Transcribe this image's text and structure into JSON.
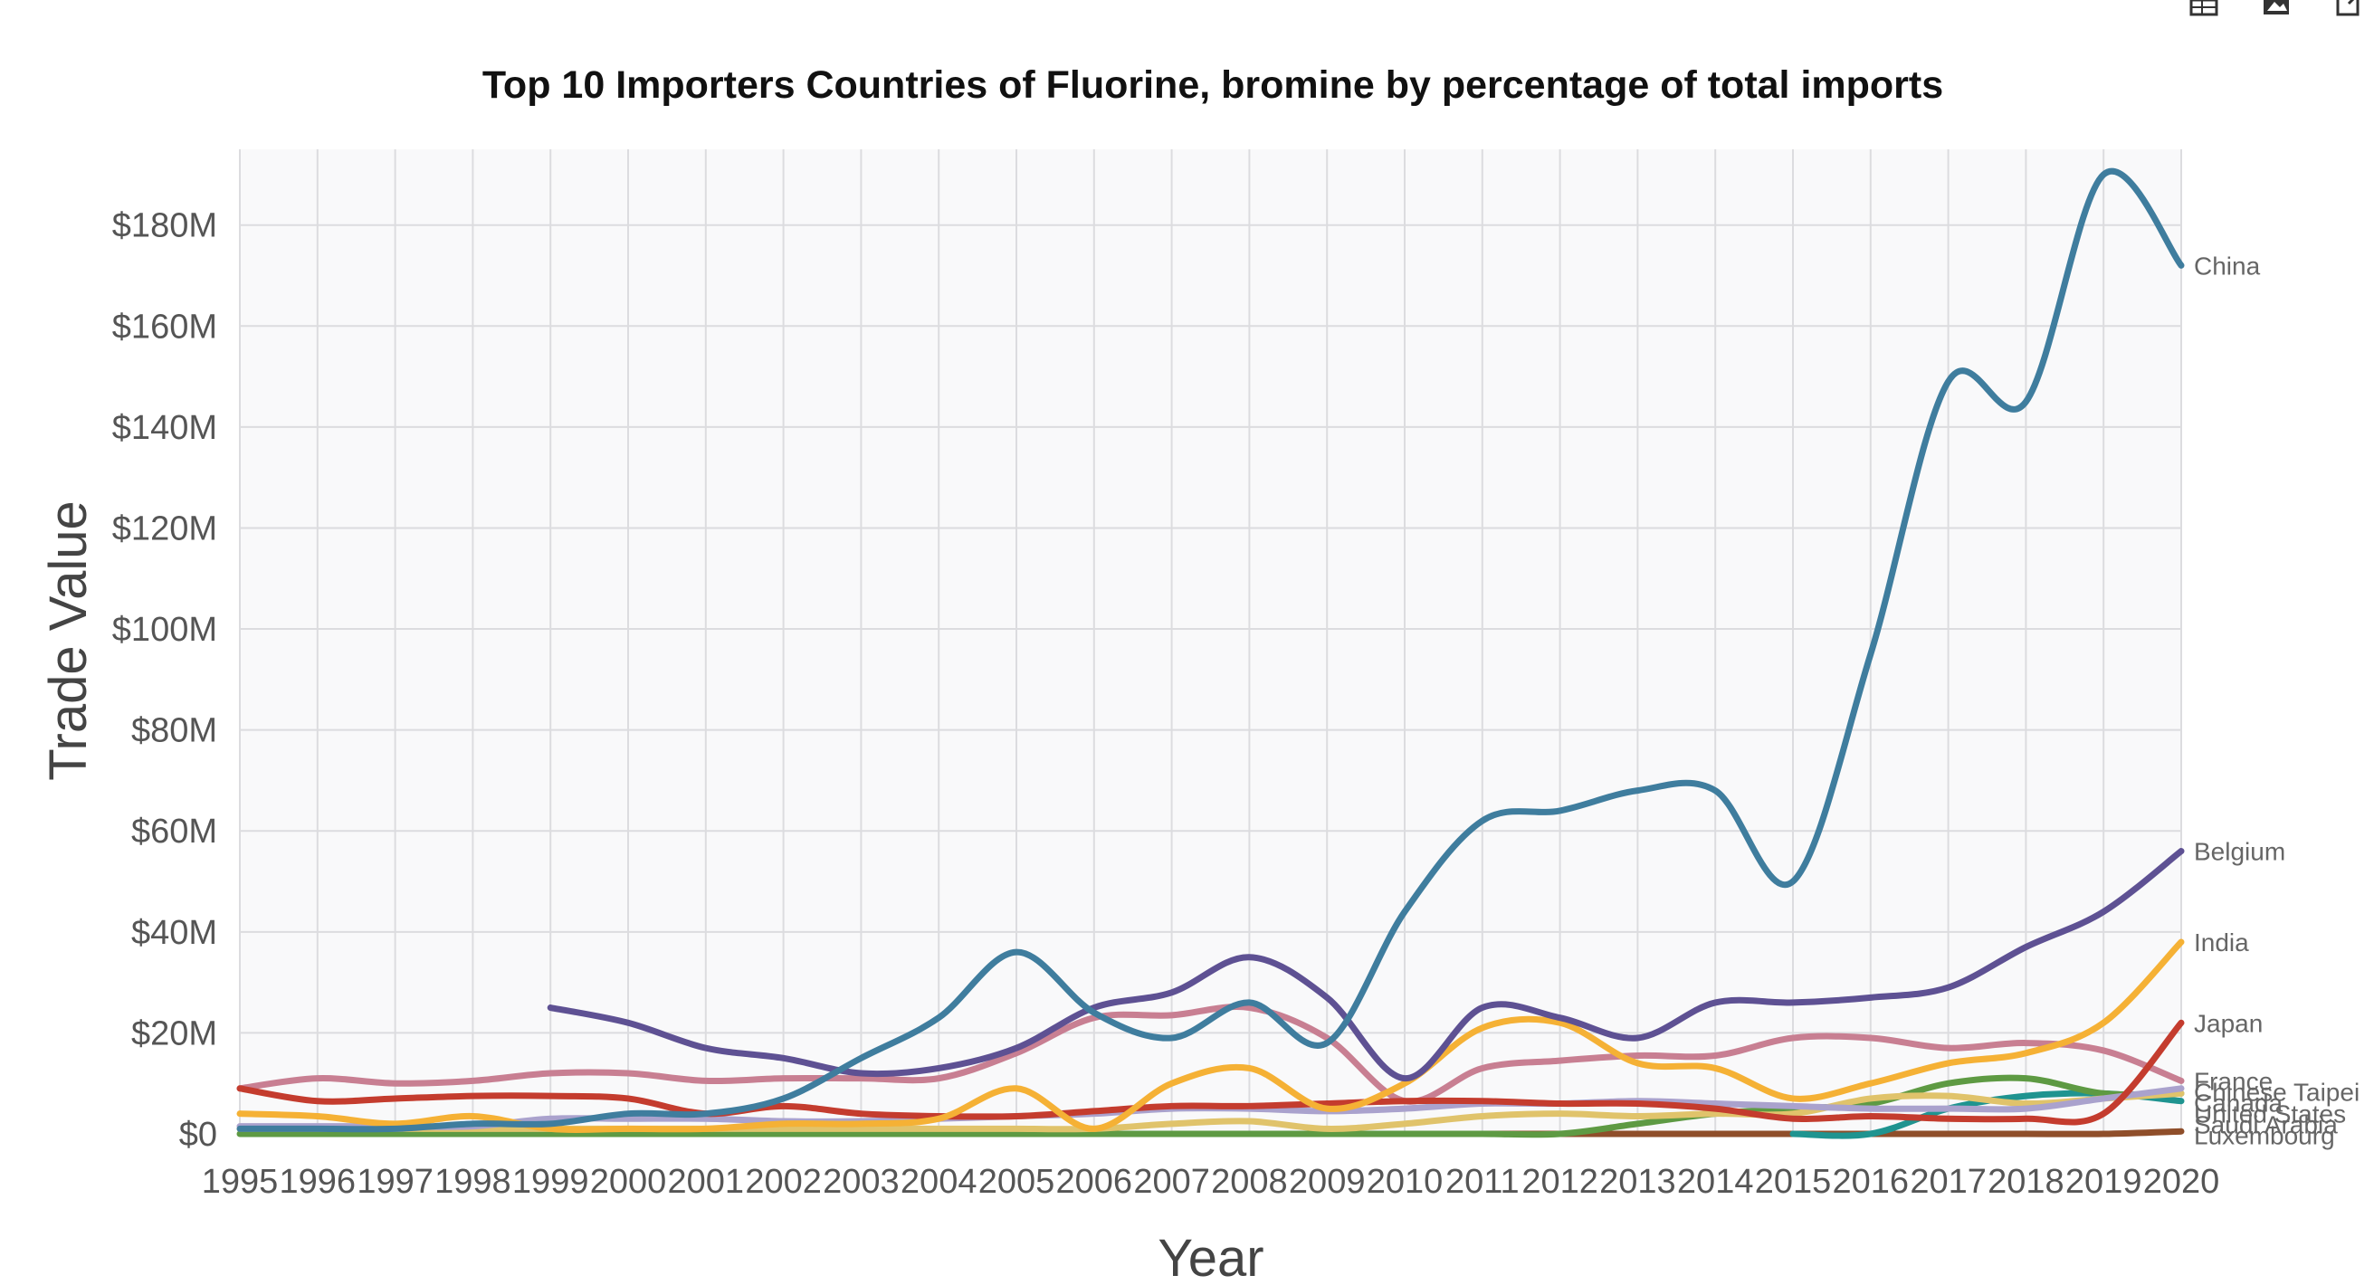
{
  "toolbar": {
    "icons": [
      "table-icon",
      "image-icon",
      "share-icon"
    ]
  },
  "chart_data": {
    "type": "line",
    "title": "Top 10 Importers Countries of Fluorine, bromine by percentage of total imports",
    "xlabel": "Year",
    "ylabel": "Trade Value",
    "x": [
      1995,
      1996,
      1997,
      1998,
      1999,
      2000,
      2001,
      2002,
      2003,
      2004,
      2005,
      2006,
      2007,
      2008,
      2009,
      2010,
      2011,
      2012,
      2013,
      2014,
      2015,
      2016,
      2017,
      2018,
      2019,
      2020
    ],
    "y_ticks": [
      0,
      20,
      40,
      60,
      80,
      100,
      120,
      140,
      160,
      180
    ],
    "y_tick_labels": [
      "$0",
      "$20M",
      "$40M",
      "$60M",
      "$80M",
      "$100M",
      "$120M",
      "$140M",
      "$160M",
      "$180M"
    ],
    "ylim": [
      0,
      195
    ],
    "y_unit": "millions USD",
    "grid": true,
    "legend": "line-end labels",
    "series": [
      {
        "name": "China",
        "color": "#3f7d9e",
        "values": [
          1,
          1,
          1,
          2,
          2,
          4,
          4,
          7,
          15,
          23,
          36,
          24,
          19,
          26,
          18,
          44,
          62,
          64,
          68,
          68,
          50,
          95,
          149,
          145,
          190,
          172
        ]
      },
      {
        "name": "Belgium",
        "color": "#5e5193",
        "values": [
          null,
          null,
          null,
          null,
          25,
          22,
          17,
          15,
          12,
          13,
          17,
          25,
          28,
          35,
          27,
          11,
          25,
          23,
          19,
          26,
          26,
          27,
          29,
          37,
          44,
          56
        ]
      },
      {
        "name": "India",
        "color": "#f5b135",
        "values": [
          4,
          3.5,
          2,
          3.5,
          1,
          1,
          1,
          2,
          2,
          3,
          9,
          1,
          10,
          13,
          5,
          10,
          21,
          22,
          14,
          13,
          7,
          10,
          14,
          16,
          22,
          38
        ]
      },
      {
        "name": "Japan",
        "color": "#c43c2e",
        "values": [
          9,
          6.5,
          7,
          7.5,
          7.5,
          7,
          4,
          5.5,
          4,
          3.5,
          3.5,
          4.5,
          5.5,
          5.5,
          6,
          6.5,
          6.5,
          6,
          6,
          5,
          3,
          3.5,
          3,
          3,
          4,
          22
        ]
      },
      {
        "name": "France",
        "color": "#c87f92",
        "values": [
          9,
          11,
          10,
          10.5,
          12,
          12,
          10.5,
          11,
          11,
          11,
          16,
          23,
          23.5,
          25,
          19,
          6.5,
          13,
          14.5,
          15.5,
          15.5,
          19,
          19,
          17,
          18,
          16.5,
          10.5
        ]
      },
      {
        "name": "Chinese Taipei",
        "color": "#aaa2cd",
        "values": [
          1.5,
          1.5,
          1.5,
          1.5,
          3,
          3,
          3,
          2.5,
          2.5,
          3,
          3.5,
          4,
          5,
          5,
          4.5,
          5,
          6,
          6,
          6.5,
          6,
          5.5,
          5,
          5,
          5,
          7,
          9
        ]
      },
      {
        "name": "Canada",
        "color": "#e0c36b",
        "values": [
          1,
          1,
          1,
          1,
          1,
          1,
          1,
          1,
          1,
          1,
          1,
          1,
          2,
          2.5,
          1,
          2,
          3.5,
          4,
          3.5,
          4,
          4,
          7,
          7.5,
          6,
          7,
          8
        ]
      },
      {
        "name": "United States",
        "color": "#5e9a43",
        "values": [
          0,
          0,
          0,
          0,
          0,
          0,
          0,
          0,
          0,
          0,
          0,
          0,
          0,
          0,
          0,
          0,
          0,
          0,
          2,
          4,
          5,
          6,
          10,
          11,
          8,
          8
        ]
      },
      {
        "name": "Saudi Arabia",
        "color": "#1f9490",
        "values": [
          null,
          null,
          null,
          null,
          null,
          null,
          null,
          null,
          null,
          null,
          null,
          null,
          null,
          null,
          null,
          null,
          null,
          null,
          null,
          null,
          0,
          0,
          5,
          7.5,
          8,
          6.5
        ]
      },
      {
        "name": "Luxembourg",
        "color": "#8f4e2a",
        "values": [
          null,
          null,
          null,
          null,
          0,
          0,
          0,
          0,
          0,
          0,
          0,
          0,
          0,
          0,
          0,
          0,
          0,
          0,
          0,
          0,
          0,
          0,
          0,
          0,
          0,
          0.5
        ]
      }
    ],
    "end_labels": [
      "China",
      "Belgium",
      "India",
      "Japan",
      "France",
      "Chinese Taipei",
      "Canada",
      "United States",
      "Saudi Arabia",
      "Luxembourg"
    ]
  }
}
